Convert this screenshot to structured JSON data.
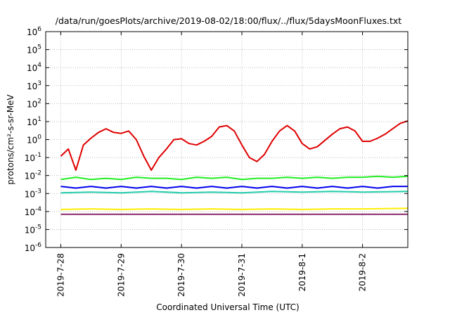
{
  "chart_data": {
    "type": "line",
    "title": "/data/run/goesPlots/archive/2019-08-02/18:00/flux/../flux/5daysMoonFluxes.txt",
    "xlabel": "Coordinated Universal Time (UTC)",
    "ylabel": "protons/cm²-s-sr-MeV",
    "y_scale": "log",
    "ylim": [
      1e-06,
      1000000.0
    ],
    "y_tick_exponents": [
      "-6",
      "-5",
      "-4",
      "-3",
      "-2",
      "-1",
      "0",
      "1",
      "2",
      "3",
      "4",
      "5",
      "6"
    ],
    "y_tick_base": "10",
    "x_tick_labels": [
      "2019-7-28",
      "2019-7-29",
      "2019-7-30",
      "2019-7-31",
      "2019-8-1",
      "2019-8-2"
    ],
    "x_range_days": [
      "2019-07-27T18:00",
      "2019-08-02T18:00"
    ],
    "grid": true,
    "series": [
      {
        "color": "#e00000",
        "points": [
          [
            "2019-07-28T00:00",
            0.12
          ],
          [
            "2019-07-28T03:00",
            0.3
          ],
          [
            "2019-07-28T06:00",
            0.02
          ],
          [
            "2019-07-28T09:00",
            0.5
          ],
          [
            "2019-07-28T12:00",
            1.2
          ],
          [
            "2019-07-28T15:00",
            2.5
          ],
          [
            "2019-07-28T18:00",
            4
          ],
          [
            "2019-07-28T21:00",
            2.5
          ],
          [
            "2019-07-29T00:00",
            2.2
          ],
          [
            "2019-07-29T03:00",
            3
          ],
          [
            "2019-07-29T06:00",
            1.0
          ],
          [
            "2019-07-29T09:00",
            0.12
          ],
          [
            "2019-07-29T12:00",
            0.02
          ],
          [
            "2019-07-29T15:00",
            0.1
          ],
          [
            "2019-07-29T18:00",
            0.3
          ],
          [
            "2019-07-29T21:00",
            1.0
          ],
          [
            "2019-07-30T00:00",
            1.1
          ],
          [
            "2019-07-30T03:00",
            0.6
          ],
          [
            "2019-07-30T06:00",
            0.5
          ],
          [
            "2019-07-30T09:00",
            0.8
          ],
          [
            "2019-07-30T12:00",
            1.5
          ],
          [
            "2019-07-30T15:00",
            5
          ],
          [
            "2019-07-30T18:00",
            6
          ],
          [
            "2019-07-30T21:00",
            3
          ],
          [
            "2019-07-31T00:00",
            0.5
          ],
          [
            "2019-07-31T03:00",
            0.1
          ],
          [
            "2019-07-31T06:00",
            0.06
          ],
          [
            "2019-07-31T09:00",
            0.15
          ],
          [
            "2019-07-31T12:00",
            0.8
          ],
          [
            "2019-07-31T15:00",
            3
          ],
          [
            "2019-07-31T18:00",
            6
          ],
          [
            "2019-07-31T21:00",
            3
          ],
          [
            "2019-08-01T00:00",
            0.6
          ],
          [
            "2019-08-01T03:00",
            0.3
          ],
          [
            "2019-08-01T06:00",
            0.4
          ],
          [
            "2019-08-01T09:00",
            0.9
          ],
          [
            "2019-08-01T12:00",
            2
          ],
          [
            "2019-08-01T15:00",
            4
          ],
          [
            "2019-08-01T18:00",
            5
          ],
          [
            "2019-08-01T21:00",
            3
          ],
          [
            "2019-08-02T00:00",
            0.8
          ],
          [
            "2019-08-02T03:00",
            0.8
          ],
          [
            "2019-08-02T06:00",
            1.2
          ],
          [
            "2019-08-02T09:00",
            2
          ],
          [
            "2019-08-02T12:00",
            4
          ],
          [
            "2019-08-02T15:00",
            8
          ],
          [
            "2019-08-02T18:00",
            11
          ]
        ]
      },
      {
        "color": "#22ee22",
        "points": [
          [
            "2019-07-28T00:00",
            0.006
          ],
          [
            "2019-07-28T06:00",
            0.008
          ],
          [
            "2019-07-28T12:00",
            0.006
          ],
          [
            "2019-07-28T18:00",
            0.007
          ],
          [
            "2019-07-29T00:00",
            0.006
          ],
          [
            "2019-07-29T06:00",
            0.008
          ],
          [
            "2019-07-29T12:00",
            0.007
          ],
          [
            "2019-07-29T18:00",
            0.007
          ],
          [
            "2019-07-30T00:00",
            0.006
          ],
          [
            "2019-07-30T06:00",
            0.008
          ],
          [
            "2019-07-30T12:00",
            0.007
          ],
          [
            "2019-07-30T18:00",
            0.008
          ],
          [
            "2019-07-31T00:00",
            0.006
          ],
          [
            "2019-07-31T06:00",
            0.007
          ],
          [
            "2019-07-31T12:00",
            0.007
          ],
          [
            "2019-07-31T18:00",
            0.008
          ],
          [
            "2019-08-01T00:00",
            0.007
          ],
          [
            "2019-08-01T06:00",
            0.008
          ],
          [
            "2019-08-01T12:00",
            0.007
          ],
          [
            "2019-08-01T18:00",
            0.008
          ],
          [
            "2019-08-02T00:00",
            0.008
          ],
          [
            "2019-08-02T06:00",
            0.009
          ],
          [
            "2019-08-02T12:00",
            0.008
          ],
          [
            "2019-08-02T18:00",
            0.009
          ]
        ]
      },
      {
        "color": "#0000ee",
        "points": [
          [
            "2019-07-28T00:00",
            0.0025
          ],
          [
            "2019-07-28T06:00",
            0.002
          ],
          [
            "2019-07-28T12:00",
            0.0025
          ],
          [
            "2019-07-28T18:00",
            0.002
          ],
          [
            "2019-07-29T00:00",
            0.0025
          ],
          [
            "2019-07-29T06:00",
            0.002
          ],
          [
            "2019-07-29T12:00",
            0.0025
          ],
          [
            "2019-07-29T18:00",
            0.002
          ],
          [
            "2019-07-30T00:00",
            0.0025
          ],
          [
            "2019-07-30T06:00",
            0.002
          ],
          [
            "2019-07-30T12:00",
            0.0025
          ],
          [
            "2019-07-30T18:00",
            0.002
          ],
          [
            "2019-07-31T00:00",
            0.0025
          ],
          [
            "2019-07-31T06:00",
            0.002
          ],
          [
            "2019-07-31T12:00",
            0.0025
          ],
          [
            "2019-07-31T18:00",
            0.002
          ],
          [
            "2019-08-01T00:00",
            0.0025
          ],
          [
            "2019-08-01T06:00",
            0.002
          ],
          [
            "2019-08-01T12:00",
            0.0025
          ],
          [
            "2019-08-01T18:00",
            0.002
          ],
          [
            "2019-08-02T00:00",
            0.0025
          ],
          [
            "2019-08-02T06:00",
            0.002
          ],
          [
            "2019-08-02T12:00",
            0.0025
          ],
          [
            "2019-08-02T18:00",
            0.0025
          ]
        ]
      },
      {
        "color": "#22ccaa",
        "points": [
          [
            "2019-07-28T00:00",
            0.0011
          ],
          [
            "2019-07-28T12:00",
            0.0012
          ],
          [
            "2019-07-29T00:00",
            0.0011
          ],
          [
            "2019-07-29T12:00",
            0.0013
          ],
          [
            "2019-07-30T00:00",
            0.0011
          ],
          [
            "2019-07-30T12:00",
            0.0012
          ],
          [
            "2019-07-31T00:00",
            0.0011
          ],
          [
            "2019-07-31T12:00",
            0.0013
          ],
          [
            "2019-08-01T00:00",
            0.0012
          ],
          [
            "2019-08-01T12:00",
            0.0013
          ],
          [
            "2019-08-02T00:00",
            0.0012
          ],
          [
            "2019-08-02T18:00",
            0.0013
          ]
        ]
      },
      {
        "color": "#ffee00",
        "points": [
          [
            "2019-07-28T00:00",
            0.00013
          ],
          [
            "2019-07-28T12:00",
            0.00014
          ],
          [
            "2019-07-29T00:00",
            0.00013
          ],
          [
            "2019-07-29T12:00",
            0.00014
          ],
          [
            "2019-07-30T00:00",
            0.00013
          ],
          [
            "2019-07-30T12:00",
            0.00014
          ],
          [
            "2019-07-31T00:00",
            0.00013
          ],
          [
            "2019-07-31T12:00",
            0.00014
          ],
          [
            "2019-08-01T00:00",
            0.00013
          ],
          [
            "2019-08-01T12:00",
            0.00014
          ],
          [
            "2019-08-02T00:00",
            0.00014
          ],
          [
            "2019-08-02T18:00",
            0.00015
          ]
        ]
      },
      {
        "color": "#8b2a6e",
        "points": [
          [
            "2019-07-28T00:00",
            7e-05
          ],
          [
            "2019-07-28T12:00",
            7e-05
          ],
          [
            "2019-07-29T00:00",
            7e-05
          ],
          [
            "2019-07-29T12:00",
            7e-05
          ],
          [
            "2019-07-30T00:00",
            7e-05
          ],
          [
            "2019-07-30T12:00",
            7e-05
          ],
          [
            "2019-07-31T00:00",
            7e-05
          ],
          [
            "2019-07-31T12:00",
            7e-05
          ],
          [
            "2019-08-01T00:00",
            7e-05
          ],
          [
            "2019-08-01T12:00",
            7e-05
          ],
          [
            "2019-08-02T00:00",
            7e-05
          ],
          [
            "2019-08-02T18:00",
            7e-05
          ]
        ]
      }
    ]
  }
}
